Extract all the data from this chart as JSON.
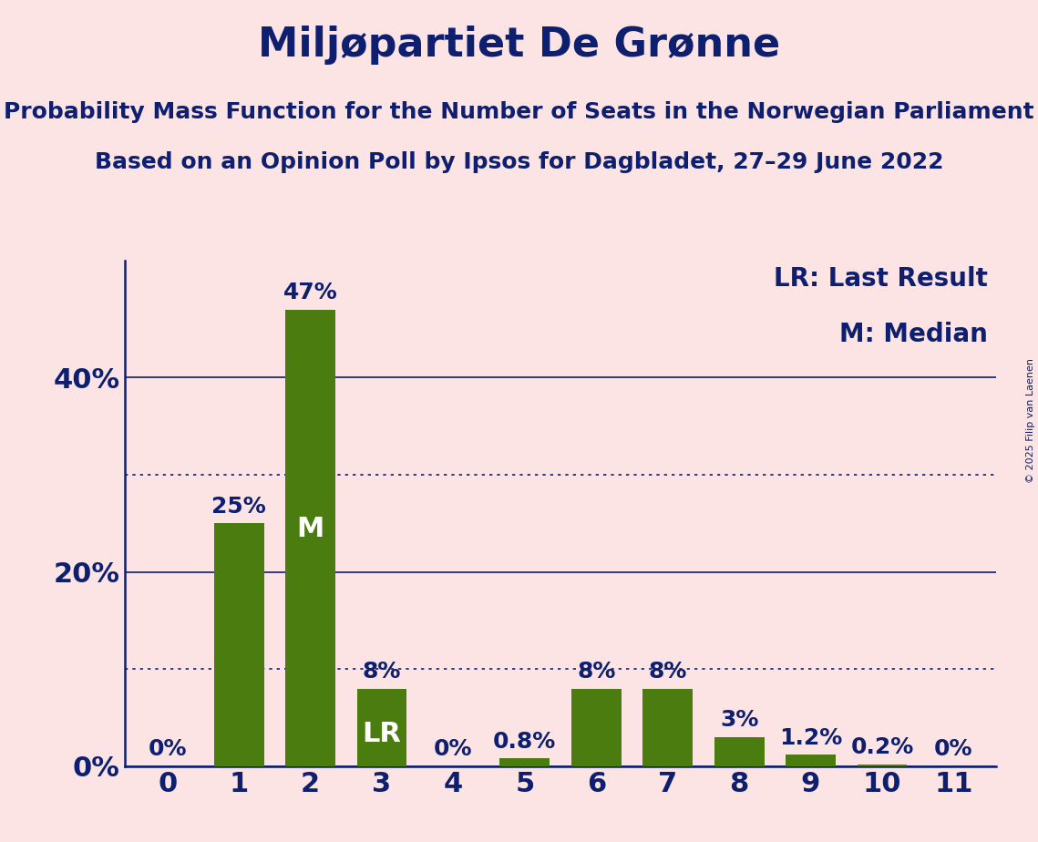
{
  "title": "Miljøpartiet De Grønne",
  "subtitle1": "Probability Mass Function for the Number of Seats in the Norwegian Parliament",
  "subtitle2": "Based on an Opinion Poll by Ipsos for Dagbladet, 27–29 June 2022",
  "copyright": "© 2025 Filip van Laenen",
  "categories": [
    0,
    1,
    2,
    3,
    4,
    5,
    6,
    7,
    8,
    9,
    10,
    11
  ],
  "values": [
    0.0,
    0.25,
    0.47,
    0.08,
    0.0,
    0.008,
    0.08,
    0.08,
    0.03,
    0.012,
    0.002,
    0.0
  ],
  "value_labels": [
    "0%",
    "25%",
    "47%",
    "8%",
    "0%",
    "0.8%",
    "8%",
    "8%",
    "3%",
    "1.2%",
    "0.2%",
    "0%"
  ],
  "bar_color": "#4a7c10",
  "background_color": "#fce4e4",
  "text_color": "#0d1f6e",
  "median_bar": 2,
  "lr_bar": 3,
  "median_label": "M",
  "lr_label": "LR",
  "legend_lr": "LR: Last Result",
  "legend_m": "M: Median",
  "yticks": [
    0.0,
    0.2,
    0.4
  ],
  "ytick_labels": [
    "0%",
    "20%",
    "40%"
  ],
  "dotted_lines": [
    0.1,
    0.3
  ],
  "ylim": [
    0,
    0.52
  ],
  "title_fontsize": 32,
  "subtitle_fontsize": 18,
  "axis_tick_fontsize": 22,
  "bar_label_fontsize": 18,
  "legend_fontsize": 20,
  "inside_label_fontsize": 22,
  "copyright_fontsize": 8
}
